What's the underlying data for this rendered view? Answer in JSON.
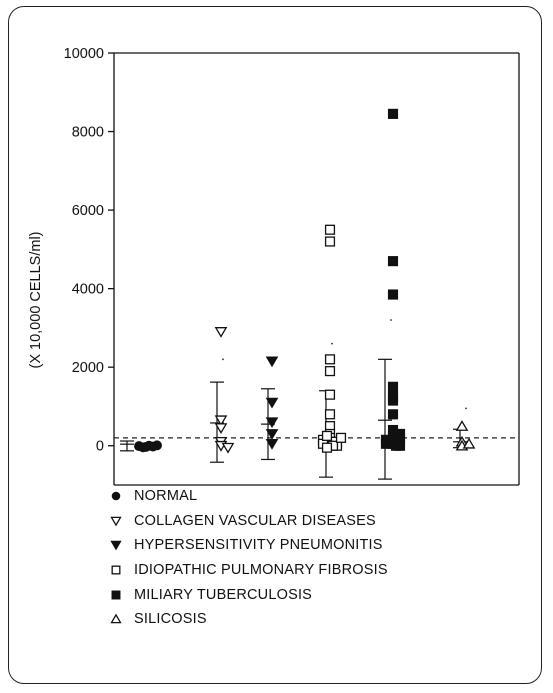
{
  "chart_data": {
    "type": "scatter",
    "title": "",
    "ylabel": "(X 10,000 CELLS/ml)",
    "xlabel": "",
    "ylim": [
      -1000,
      10000
    ],
    "yticks": [
      0,
      2000,
      4000,
      6000,
      8000,
      10000
    ],
    "grid": false,
    "legend_position": "bottom",
    "reference_line": {
      "y": 200,
      "style": "dashed"
    },
    "series": [
      {
        "name": "NORMAL",
        "marker": "filled-circle",
        "values": [
          -30,
          -20,
          -10,
          0,
          -40,
          10
        ],
        "mean": 40,
        "sd_low": -130,
        "sd_high": 120
      },
      {
        "name": "COLLAGEN VASCULAR DISEASES",
        "marker": "open-triangle-down",
        "values": [
          2900,
          650,
          450,
          100,
          0,
          -50
        ],
        "mean": 580,
        "sd_low": -420,
        "sd_high": 1620,
        "max_marker": 2200
      },
      {
        "name": "HYPERSENSITIVITY PNEUMONITIS",
        "marker": "filled-triangle-down",
        "values": [
          2150,
          1100,
          600,
          300,
          50
        ],
        "mean": 550,
        "sd_low": -350,
        "sd_high": 1450
      },
      {
        "name": "IDIOPATHIC PULMONARY FIBROSIS",
        "marker": "open-square",
        "values": [
          5500,
          5200,
          2200,
          1900,
          1300,
          800,
          500,
          300,
          200,
          100,
          50,
          0,
          150,
          100,
          50,
          0,
          -50,
          250,
          200
        ],
        "mean": 250,
        "sd_low": -800,
        "sd_high": 1400,
        "max_marker": 2600
      },
      {
        "name": "MILIARY TUBERCULOSIS",
        "marker": "filled-square",
        "values": [
          8450,
          4700,
          3850,
          1500,
          1250,
          1150,
          800,
          400,
          300,
          250,
          200,
          150,
          100,
          50,
          0,
          50,
          0,
          100
        ],
        "mean": 650,
        "sd_low": -850,
        "sd_high": 2200,
        "max_marker": 3200
      },
      {
        "name": "SILICOSIS",
        "marker": "open-triangle-up",
        "values": [
          500,
          100,
          0,
          50
        ],
        "mean": 100,
        "sd_low": -50,
        "sd_high": 420,
        "max_marker": 950
      }
    ]
  },
  "legend": [
    {
      "label": "NORMAL",
      "icon": "filled-circle-icon"
    },
    {
      "label": "COLLAGEN VASCULAR DISEASES",
      "icon": "open-triangle-down-icon"
    },
    {
      "label": "HYPERSENSITIVITY PNEUMONITIS",
      "icon": "filled-triangle-down-icon"
    },
    {
      "label": "IDIOPATHIC PULMONARY FIBROSIS",
      "icon": "open-square-icon"
    },
    {
      "label": "MILIARY TUBERCULOSIS",
      "icon": "filled-square-icon"
    },
    {
      "label": "SILICOSIS",
      "icon": "open-triangle-up-icon"
    }
  ]
}
